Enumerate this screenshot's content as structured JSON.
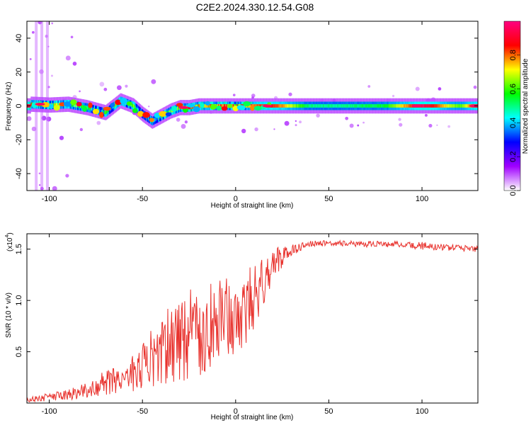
{
  "figure_title": "C2E2.2024.330.12.54.G08",
  "chart_data": [
    {
      "type": "heatmap",
      "xlabel": "Height of straight line (km)",
      "ylabel": "Frequency (Hz)",
      "xlim": [
        -112,
        130
      ],
      "ylim": [
        -50,
        50
      ],
      "xticks": [
        -100,
        -50,
        0,
        50,
        100
      ],
      "yticks": [
        -40,
        -20,
        0,
        20,
        40
      ],
      "colorbar": {
        "label": "Normalized spectral amplitude",
        "range": [
          0,
          1
        ],
        "ticks": [
          "0.0",
          "0.2",
          "0.4",
          "0.6",
          "0.8"
        ],
        "tick_values": [
          0.0,
          0.2,
          0.4,
          0.6,
          0.8
        ],
        "colormap": [
          "#ffffff",
          "#a000ff",
          "#0000ff",
          "#00ffff",
          "#00ff00",
          "#ffff00",
          "#ff0000",
          "#ff0080"
        ]
      },
      "ridge": {
        "x": [
          -110,
          -100,
          -90,
          -80,
          -70,
          -62,
          -55,
          -50,
          -45,
          -40,
          -35,
          -30,
          -25,
          -20,
          -10,
          0,
          10,
          20,
          40,
          60,
          80,
          100,
          120,
          130
        ],
        "frequency": [
          1,
          0.5,
          1,
          -1,
          -4,
          3,
          0,
          -5,
          -9,
          -6,
          -3,
          -1,
          -1,
          0,
          0,
          0,
          0,
          0,
          0,
          0,
          0,
          0,
          0,
          0
        ],
        "intensity": [
          0.75,
          0.6,
          0.55,
          0.5,
          0.45,
          0.55,
          0.5,
          0.45,
          0.45,
          0.5,
          0.6,
          0.7,
          0.8,
          0.75,
          0.75,
          0.75,
          0.8,
          0.85,
          0.5,
          0.5,
          0.55,
          0.95,
          0.6,
          0.9
        ]
      }
    },
    {
      "type": "line",
      "xlabel": "Height of straight line (km)",
      "ylabel": "SNR (10 * v/v)",
      "yscale_label": "(x10",
      "yscale_exp": "4",
      "xlim": [
        -112,
        130
      ],
      "ylim": [
        0,
        1.65
      ],
      "xticks": [
        -100,
        -50,
        0,
        50,
        100
      ],
      "yticks": [
        0.5,
        1.0,
        1.5
      ],
      "ytick_labels": [
        "0.5",
        "1.0",
        "1.5"
      ],
      "color": "#e8322d",
      "series": [
        {
          "x": [
            -112,
            -100,
            -90,
            -80,
            -70,
            -60,
            -50,
            -40,
            -30,
            -20,
            -10,
            0,
            10,
            15,
            20,
            30,
            40,
            50,
            60,
            70,
            80,
            90,
            100,
            110,
            120,
            130
          ],
          "values": [
            0.03,
            0.06,
            0.08,
            0.12,
            0.2,
            0.25,
            0.35,
            0.5,
            0.65,
            0.75,
            0.8,
            0.85,
            1.0,
            1.2,
            1.35,
            1.5,
            1.55,
            1.56,
            1.55,
            1.55,
            1.55,
            1.54,
            1.53,
            1.52,
            1.51,
            1.5
          ],
          "spread": [
            0.02,
            0.04,
            0.05,
            0.08,
            0.12,
            0.15,
            0.25,
            0.35,
            0.45,
            0.5,
            0.45,
            0.4,
            0.35,
            0.25,
            0.15,
            0.06,
            0.03,
            0.03,
            0.03,
            0.03,
            0.03,
            0.03,
            0.04,
            0.03,
            0.03,
            0.03
          ]
        }
      ]
    }
  ]
}
